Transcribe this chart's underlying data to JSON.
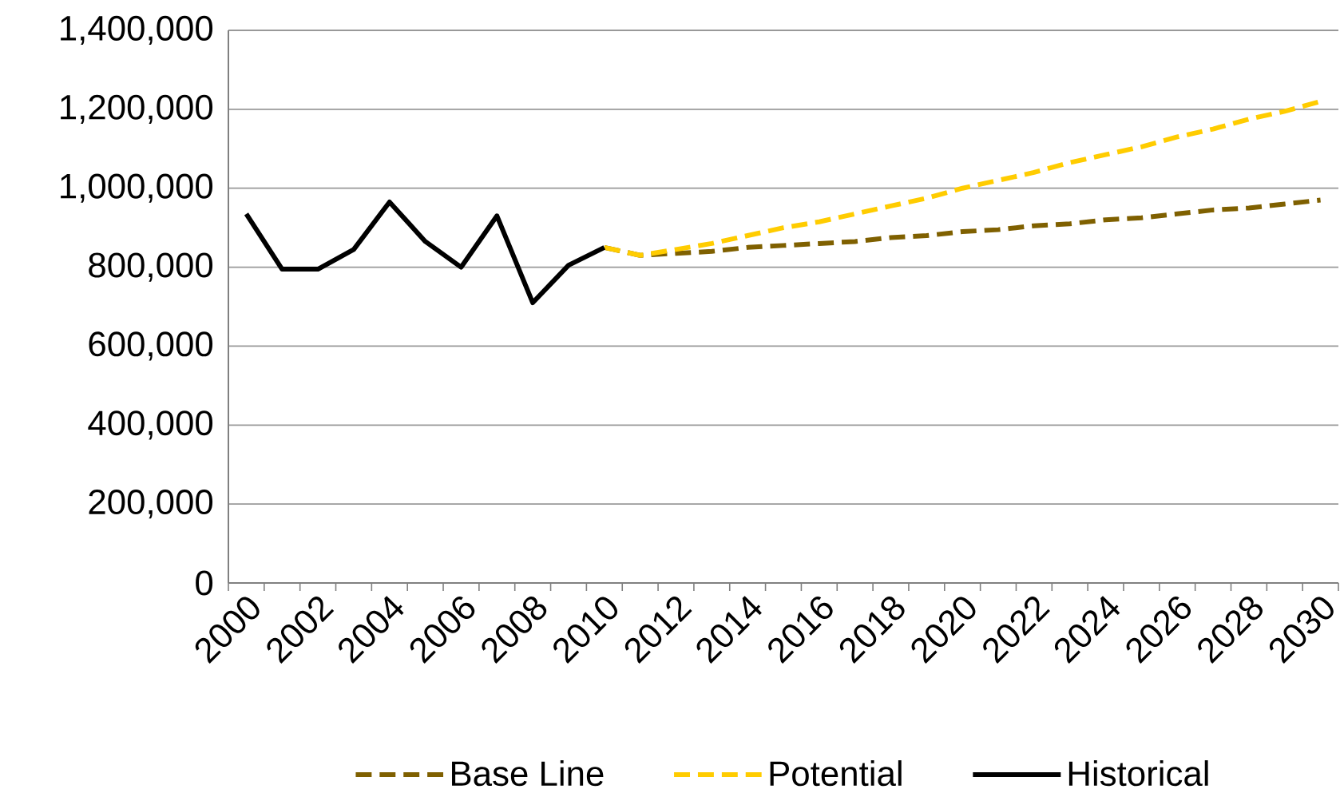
{
  "chart_data": {
    "type": "line",
    "categories": [
      "2000",
      null,
      "2002",
      null,
      "2004",
      null,
      "2006",
      null,
      "2008",
      null,
      "2010",
      null,
      "2012",
      null,
      "2014",
      null,
      "2016",
      null,
      "2018",
      null,
      "2020",
      null,
      "2022",
      null,
      "2024",
      null,
      "2026",
      null,
      "2028",
      null,
      "2030"
    ],
    "series": [
      {
        "name": "Base Line",
        "color": "#7f6000",
        "line_style": "dashed",
        "values": [
          null,
          null,
          null,
          null,
          null,
          null,
          null,
          null,
          null,
          null,
          850000,
          830000,
          835000,
          840000,
          850000,
          855000,
          860000,
          865000,
          875000,
          880000,
          890000,
          895000,
          905000,
          910000,
          920000,
          925000,
          935000,
          945000,
          950000,
          960000,
          970000
        ]
      },
      {
        "name": "Potential",
        "color": "#ffcc00",
        "line_style": "dashed",
        "values": [
          null,
          null,
          null,
          null,
          null,
          null,
          null,
          null,
          null,
          null,
          850000,
          830000,
          845000,
          860000,
          880000,
          900000,
          915000,
          935000,
          955000,
          975000,
          1000000,
          1020000,
          1040000,
          1065000,
          1085000,
          1105000,
          1130000,
          1150000,
          1175000,
          1195000,
          1220000
        ]
      },
      {
        "name": "Historical",
        "color": "#000000",
        "line_style": "solid",
        "values": [
          935000,
          795000,
          795000,
          845000,
          965000,
          865000,
          800000,
          930000,
          710000,
          805000,
          850000,
          null,
          null,
          null,
          null,
          null,
          null,
          null,
          null,
          null,
          null,
          null,
          null,
          null,
          null,
          null,
          null,
          null,
          null,
          null,
          null
        ]
      }
    ],
    "ylim": [
      0,
      1400000
    ],
    "yticks": [
      {
        "value": 0,
        "label": "0"
      },
      {
        "value": 200000,
        "label": "200,000"
      },
      {
        "value": 400000,
        "label": "400,000"
      },
      {
        "value": 600000,
        "label": "600,000"
      },
      {
        "value": 800000,
        "label": "800,000"
      },
      {
        "value": 1000000,
        "label": "1,000,000"
      },
      {
        "value": 1200000,
        "label": "1,200,000"
      },
      {
        "value": 1400000,
        "label": "1,400,000"
      }
    ],
    "grid": "y",
    "legend": "bottom",
    "marker": "none"
  }
}
